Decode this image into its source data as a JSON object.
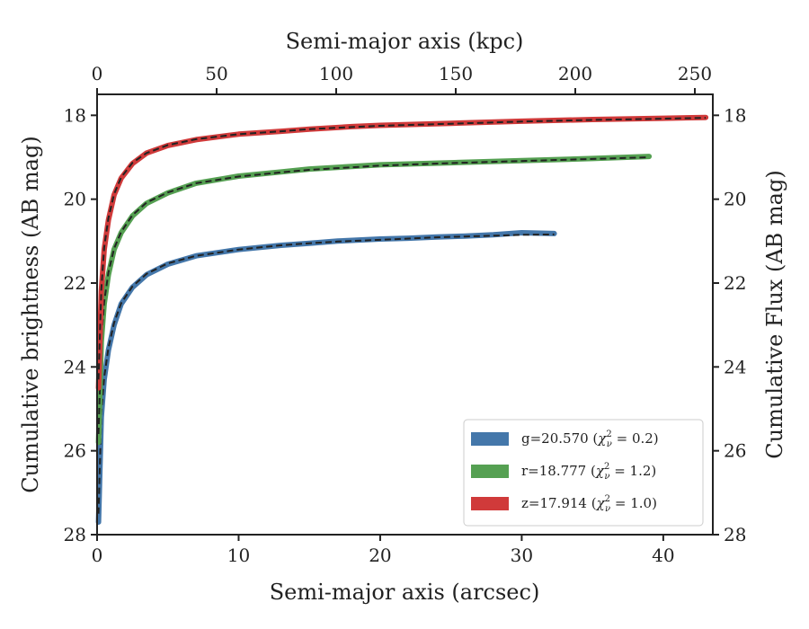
{
  "chart_data": {
    "type": "line",
    "xlabel": "Semi-major axis (arcsec)",
    "xlabel_top": "Semi-major axis (kpc)",
    "ylabel": "Cumulative brightness (AB mag)",
    "ylabel_right": "Cumulative Flux (AB mag)",
    "xlim": [
      0,
      43.5
    ],
    "ylim": [
      28,
      17.5
    ],
    "y_inverted": true,
    "x_ticks": [
      0,
      10,
      20,
      30,
      40
    ],
    "y_ticks": [
      18,
      20,
      22,
      24,
      26,
      28
    ],
    "top_ticks": [
      0,
      50,
      100,
      150,
      200,
      250
    ],
    "kpc_per_arcsec": 5.92,
    "grid": false,
    "legend_position": "lower right",
    "series": [
      {
        "name": "g=20.570 ($\\chi^2_\\nu = 0.2$)",
        "legend": {
          "pre": "g=20.570 (",
          "chi": "χ",
          "sup": "2",
          "sub": "ν",
          "post": " = 0.2)"
        },
        "color": "#4477aa",
        "x": [
          0.1,
          0.3,
          0.5,
          0.8,
          1.2,
          1.7,
          2.5,
          3.5,
          5,
          7,
          10,
          13,
          15,
          17,
          20,
          22,
          24,
          26,
          28,
          30,
          32.3
        ],
        "y": [
          27.7,
          25.2,
          24.3,
          23.6,
          23.0,
          22.5,
          22.1,
          21.8,
          21.55,
          21.35,
          21.2,
          21.1,
          21.05,
          21.0,
          20.95,
          20.93,
          20.9,
          20.88,
          20.85,
          20.8,
          20.82
        ],
        "model_x": [
          0.1,
          0.3,
          0.5,
          0.8,
          1.2,
          1.7,
          2.5,
          3.5,
          5,
          7,
          10,
          13,
          15,
          17,
          20,
          22,
          24,
          26,
          28,
          30,
          32.3
        ],
        "model_y": [
          27.5,
          25.1,
          24.25,
          23.55,
          22.95,
          22.48,
          22.08,
          21.78,
          21.53,
          21.35,
          21.2,
          21.1,
          21.05,
          21.01,
          20.97,
          20.94,
          20.91,
          20.89,
          20.87,
          20.85,
          20.84
        ]
      },
      {
        "name": "r=18.777 ($\\chi^2_\\nu = 1.2$)",
        "legend": {
          "pre": "r=18.777 (",
          "chi": "χ",
          "sup": "2",
          "sub": "ν",
          "post": " = 1.2)"
        },
        "color": "#55a052",
        "x": [
          0.1,
          0.3,
          0.5,
          0.8,
          1.2,
          1.7,
          2.5,
          3.5,
          5,
          7,
          10,
          13,
          15,
          18,
          20,
          25,
          30,
          35,
          39
        ],
        "y": [
          25.8,
          23.4,
          22.5,
          21.8,
          21.2,
          20.8,
          20.4,
          20.1,
          19.85,
          19.62,
          19.45,
          19.35,
          19.28,
          19.22,
          19.18,
          19.13,
          19.08,
          19.03,
          18.98
        ],
        "model_x": [
          0.1,
          0.3,
          0.5,
          0.8,
          1.2,
          1.7,
          2.5,
          3.5,
          5,
          7,
          10,
          13,
          15,
          18,
          20,
          25,
          30,
          35,
          39
        ],
        "model_y": [
          25.6,
          23.35,
          22.45,
          21.75,
          21.18,
          20.78,
          20.38,
          20.08,
          19.84,
          19.62,
          19.46,
          19.36,
          19.3,
          19.24,
          19.2,
          19.14,
          19.09,
          19.04,
          19.0
        ]
      },
      {
        "name": "z=17.914 ($\\chi^2_\\nu = 1.0$)",
        "legend": {
          "pre": "z=17.914 (",
          "chi": "χ",
          "sup": "2",
          "sub": "ν",
          "post": " = 1.0)"
        },
        "color": "#d03a3a",
        "x": [
          0.1,
          0.3,
          0.5,
          0.8,
          1.2,
          1.7,
          2.5,
          3.5,
          5,
          7,
          10,
          13,
          15,
          18,
          20,
          25,
          30,
          35,
          40,
          43
        ],
        "y": [
          24.5,
          22.2,
          21.2,
          20.5,
          19.9,
          19.5,
          19.15,
          18.9,
          18.72,
          18.58,
          18.45,
          18.38,
          18.33,
          18.27,
          18.24,
          18.19,
          18.14,
          18.1,
          18.07,
          18.05
        ],
        "model_x": [
          0.1,
          0.3,
          0.5,
          0.8,
          1.2,
          1.7,
          2.5,
          3.5,
          5,
          7,
          10,
          13,
          15,
          18,
          20,
          25,
          30,
          35,
          40,
          43
        ],
        "model_y": [
          24.3,
          22.15,
          21.15,
          20.45,
          19.88,
          19.48,
          19.13,
          18.9,
          18.71,
          18.57,
          18.45,
          18.38,
          18.33,
          18.28,
          18.25,
          18.2,
          18.15,
          18.11,
          18.08,
          18.06
        ]
      }
    ]
  }
}
